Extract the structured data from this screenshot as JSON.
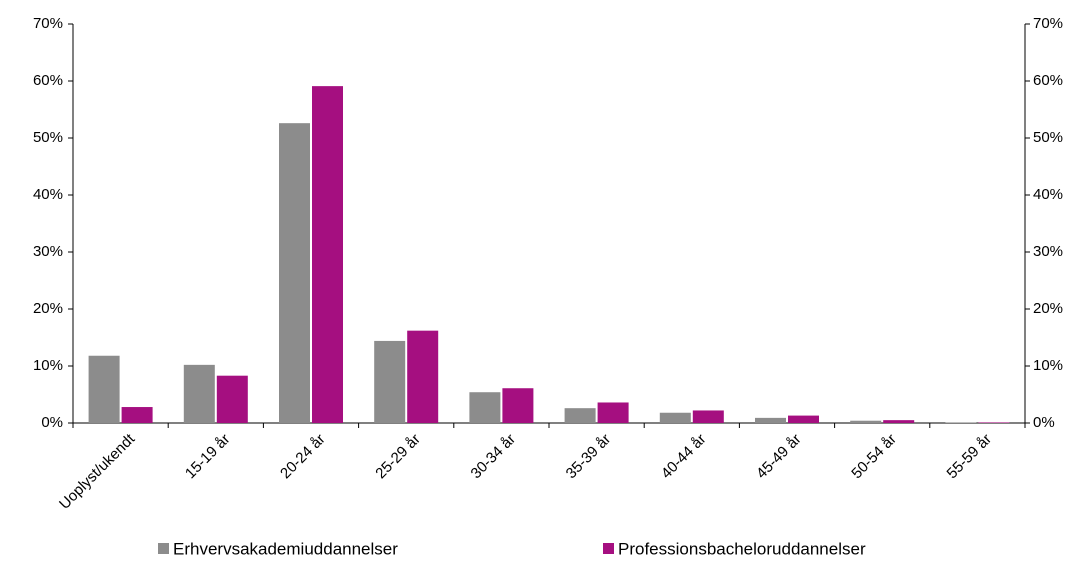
{
  "chart_data": {
    "type": "bar",
    "categories": [
      "Uoplyst/ukendt",
      "15-19 år",
      "20-24 år",
      "25-29 år",
      "30-34 år",
      "35-39 år",
      "40-44 år",
      "45-49 år",
      "50-54 år",
      "55-59 år"
    ],
    "series": [
      {
        "name": "Erhvervsakademiuddannelser",
        "color": "#8c8c8c",
        "values": [
          11.8,
          10.2,
          52.6,
          14.4,
          5.4,
          2.6,
          1.8,
          0.9,
          0.4,
          0.1
        ]
      },
      {
        "name": "Professionsbacheloruddannelser",
        "color": "#a50f80",
        "values": [
          2.8,
          8.3,
          59.1,
          16.2,
          6.1,
          3.6,
          2.2,
          1.3,
          0.5,
          0.1
        ]
      }
    ],
    "ylim": [
      0,
      70
    ],
    "yticks": [
      {
        "value": 0,
        "label": "0%"
      },
      {
        "value": 10,
        "label": "10%"
      },
      {
        "value": 20,
        "label": "20%"
      },
      {
        "value": 30,
        "label": "30%"
      },
      {
        "value": 40,
        "label": "40%"
      },
      {
        "value": 50,
        "label": "50%"
      },
      {
        "value": 60,
        "label": "60%"
      },
      {
        "value": 70,
        "label": "70%"
      }
    ],
    "y2lim": [
      0,
      70
    ],
    "y2ticks": [
      {
        "value": 0,
        "label": "0%"
      },
      {
        "value": 10,
        "label": "10%"
      },
      {
        "value": 20,
        "label": "20%"
      },
      {
        "value": 30,
        "label": "30%"
      },
      {
        "value": 40,
        "label": "40%"
      },
      {
        "value": 50,
        "label": "50%"
      },
      {
        "value": 60,
        "label": "60%"
      },
      {
        "value": 70,
        "label": "70%"
      }
    ],
    "grid": false,
    "legend": "bottom"
  }
}
